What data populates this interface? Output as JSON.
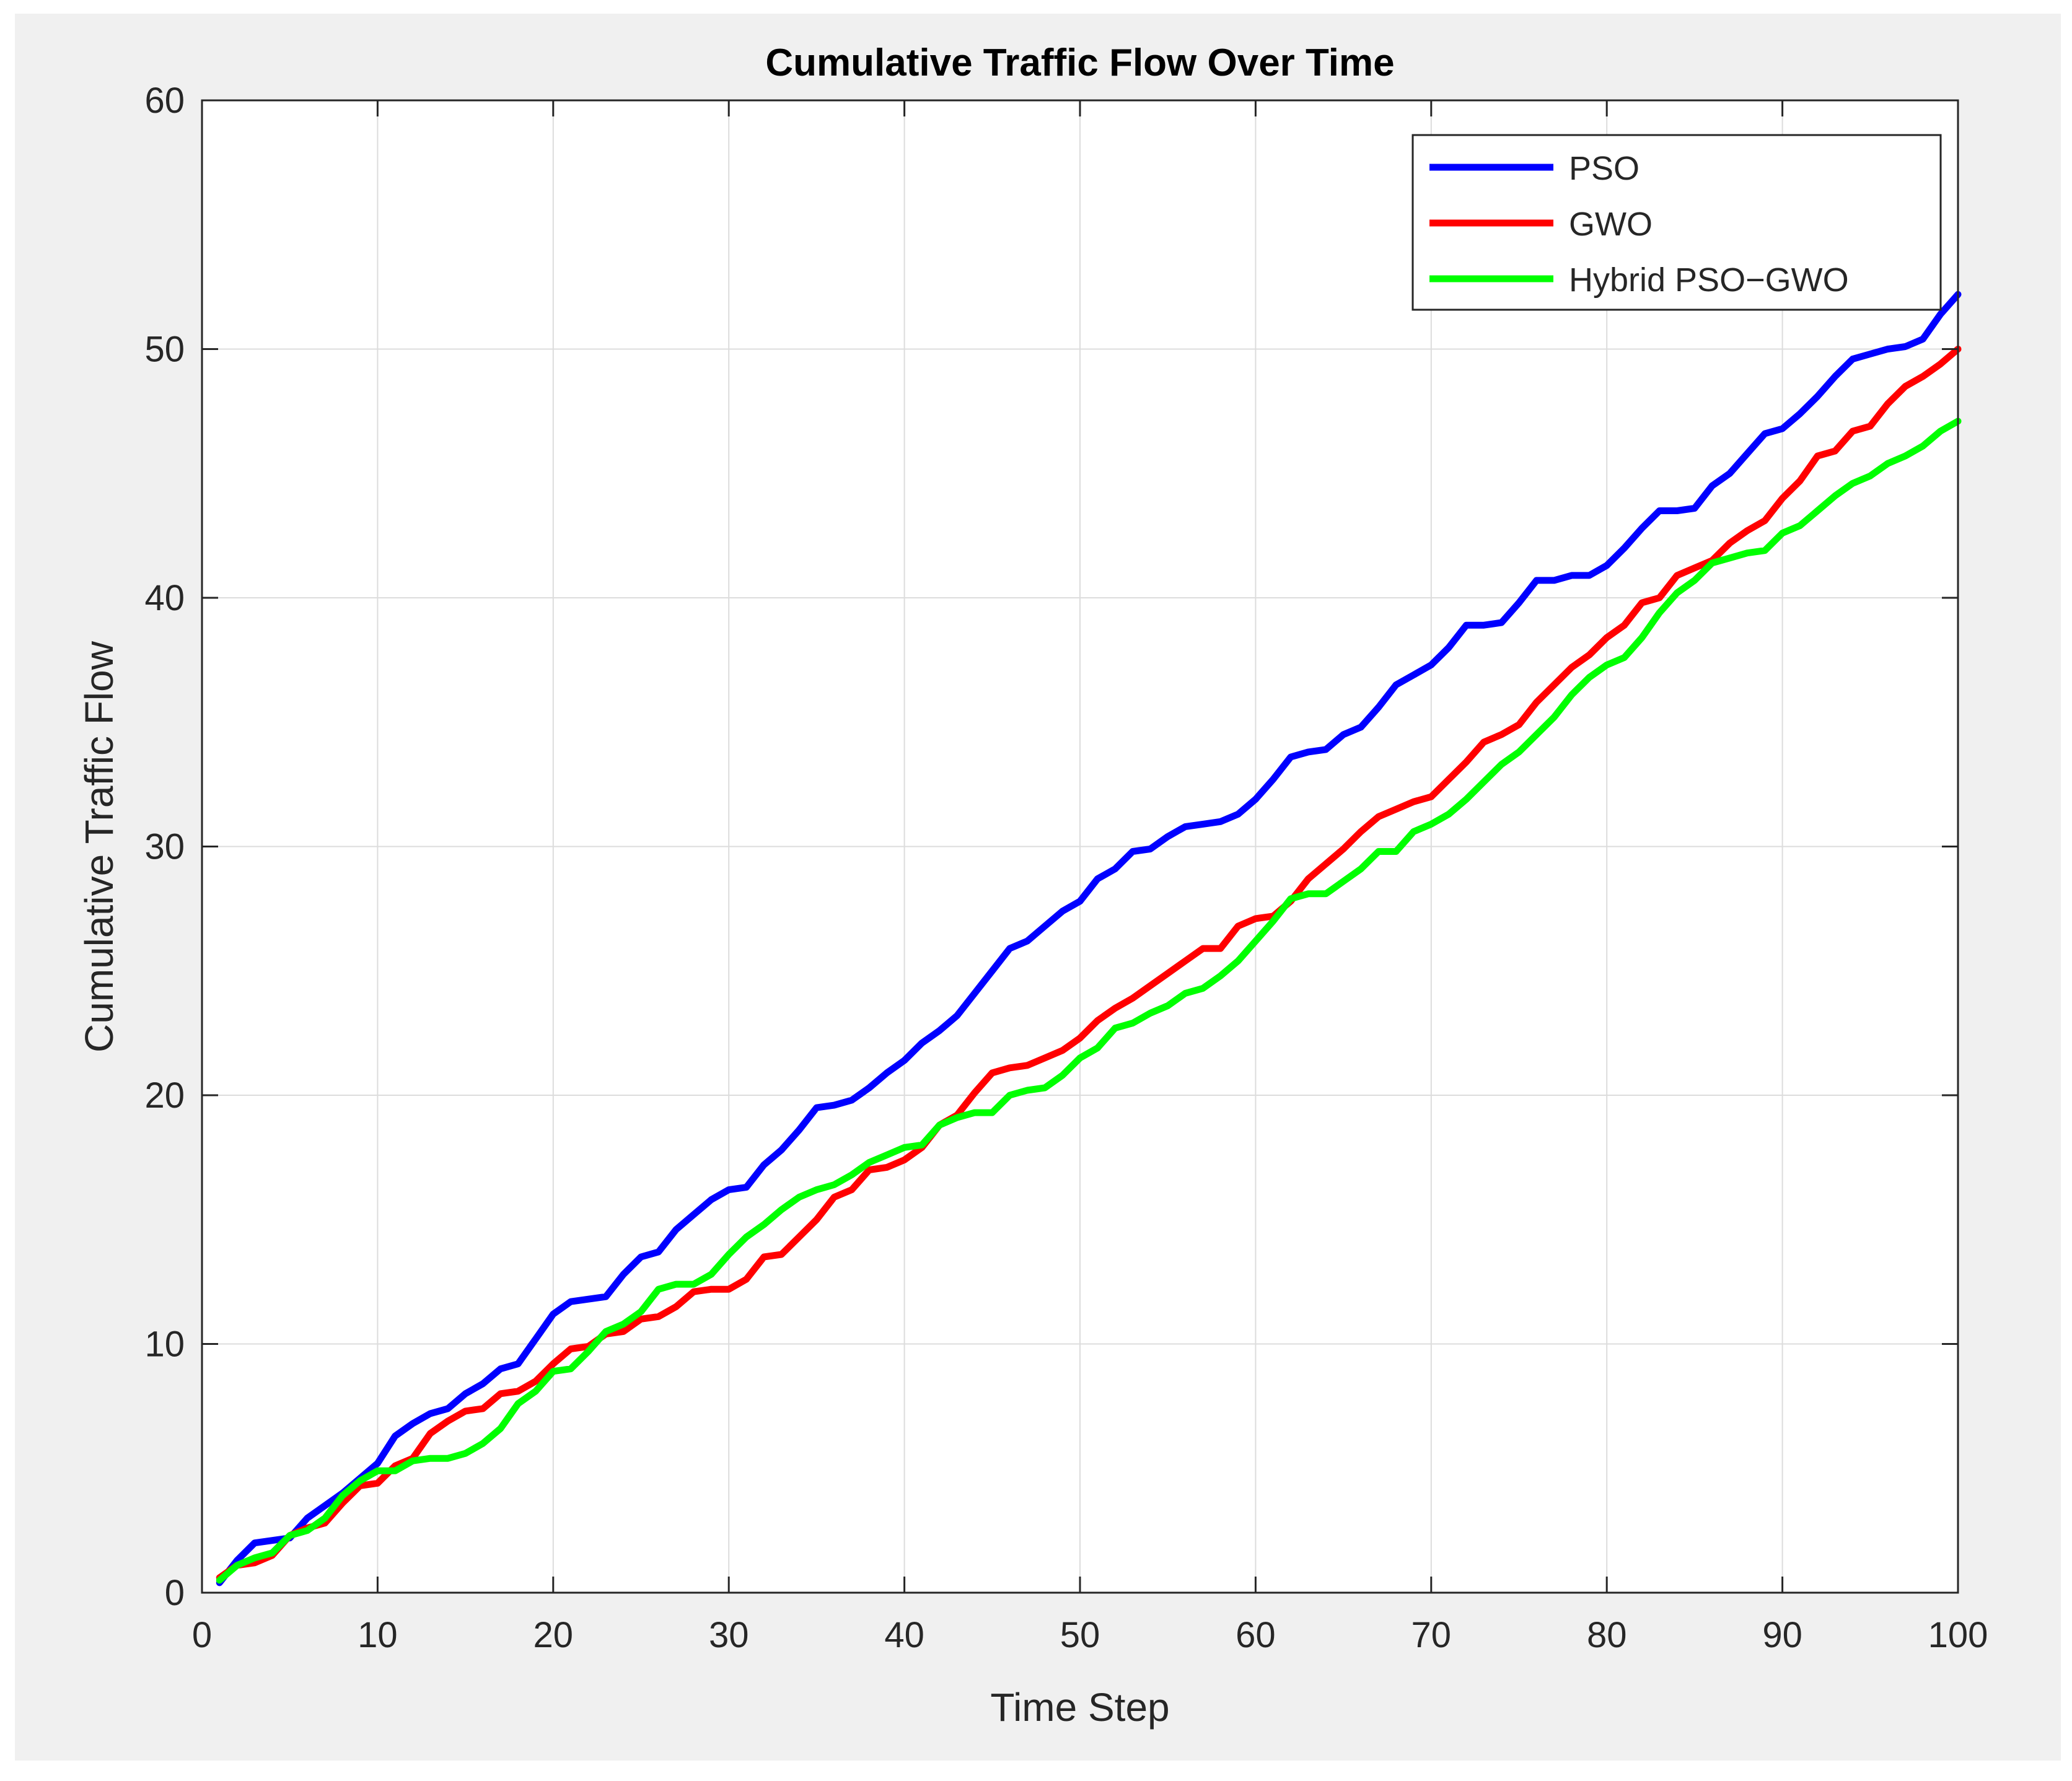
{
  "chart_data": {
    "type": "line",
    "title": "Cumulative Traffic Flow Over Time",
    "xlabel": "Time Step",
    "ylabel": "Cumulative Traffic Flow",
    "xlim": [
      0,
      100
    ],
    "ylim": [
      0,
      60
    ],
    "xticks": [
      0,
      10,
      20,
      30,
      40,
      50,
      60,
      70,
      80,
      90,
      100
    ],
    "yticks": [
      0,
      10,
      20,
      30,
      40,
      50,
      60
    ],
    "grid": true,
    "legend_position": "top-right",
    "series": [
      {
        "name": "PSO",
        "color": "#0000ff",
        "x": [
          1,
          2,
          3,
          5,
          6,
          8,
          9,
          10,
          11,
          12,
          13,
          14,
          15,
          16,
          17,
          18,
          19,
          20,
          21,
          23,
          24,
          25,
          26,
          27,
          28,
          29,
          30,
          31,
          32,
          33,
          34,
          35,
          36,
          37,
          38,
          39,
          40,
          41,
          42,
          43,
          44,
          45,
          46,
          47,
          48,
          49,
          50,
          51,
          52,
          53,
          54,
          55,
          56,
          57,
          58,
          59,
          60,
          61,
          62,
          63,
          64,
          65,
          66,
          67,
          68,
          69,
          70,
          71,
          72,
          73,
          74,
          75,
          76,
          77,
          78,
          79,
          80,
          81,
          82,
          83,
          84,
          85,
          86,
          87,
          88,
          89,
          90,
          91,
          92,
          93,
          94,
          95,
          96,
          97,
          98,
          99,
          100
        ],
        "values": [
          0.4,
          1.3,
          2.0,
          2.2,
          3.0,
          4.0,
          4.6,
          5.2,
          6.3,
          6.8,
          7.2,
          7.4,
          8.0,
          8.4,
          9.0,
          9.2,
          10.2,
          11.2,
          11.7,
          11.9,
          12.8,
          13.5,
          13.7,
          14.6,
          15.2,
          15.8,
          16.2,
          16.3,
          17.2,
          17.8,
          18.6,
          19.5,
          19.6,
          19.8,
          20.3,
          20.9,
          21.4,
          22.1,
          22.6,
          23.2,
          24.1,
          25.0,
          25.9,
          26.2,
          26.8,
          27.4,
          27.8,
          28.7,
          29.1,
          29.8,
          29.9,
          30.4,
          30.8,
          30.9,
          31.0,
          31.3,
          31.9,
          32.7,
          33.6,
          33.8,
          33.9,
          34.5,
          34.8,
          35.6,
          36.5,
          36.9,
          37.3,
          38.0,
          38.9,
          38.9,
          39.0,
          39.8,
          40.7,
          40.7,
          40.9,
          40.9,
          41.3,
          42.0,
          42.8,
          43.5,
          43.5,
          43.6,
          44.5,
          45.0,
          45.8,
          46.6,
          46.8,
          47.4,
          48.1,
          48.9,
          49.6,
          49.8,
          50.0,
          50.1,
          50.4,
          51.4,
          52.2
        ]
      },
      {
        "name": "GWO",
        "color": "#ff0000",
        "x": [
          1,
          2,
          3,
          4,
          5,
          6,
          7,
          8,
          9,
          10,
          11,
          12,
          13,
          14,
          15,
          16,
          17,
          18,
          19,
          20,
          21,
          22,
          23,
          24,
          25,
          26,
          27,
          28,
          29,
          30,
          31,
          32,
          33,
          34,
          35,
          36,
          37,
          38,
          39,
          40,
          41,
          42,
          43,
          44,
          45,
          46,
          47,
          48,
          49,
          50,
          51,
          52,
          53,
          54,
          55,
          56,
          57,
          58,
          59,
          60,
          61,
          62,
          63,
          64,
          65,
          66,
          67,
          68,
          69,
          70,
          71,
          72,
          73,
          74,
          75,
          76,
          77,
          78,
          79,
          80,
          81,
          82,
          83,
          84,
          85,
          86,
          87,
          88,
          89,
          90,
          91,
          92,
          93,
          94,
          95,
          96,
          97,
          98,
          99,
          100
        ],
        "values": [
          0.6,
          1.1,
          1.2,
          1.5,
          2.3,
          2.6,
          2.8,
          3.6,
          4.3,
          4.4,
          5.1,
          5.4,
          6.4,
          6.9,
          7.3,
          7.4,
          8.0,
          8.1,
          8.5,
          9.2,
          9.8,
          9.9,
          10.4,
          10.5,
          11.0,
          11.1,
          11.5,
          12.1,
          12.2,
          12.2,
          12.6,
          13.5,
          13.6,
          14.3,
          15.0,
          15.9,
          16.2,
          17.0,
          17.1,
          17.4,
          17.9,
          18.8,
          19.2,
          20.1,
          20.9,
          21.1,
          21.2,
          21.5,
          21.8,
          22.3,
          23.0,
          23.5,
          23.9,
          24.4,
          24.9,
          25.4,
          25.9,
          25.9,
          26.8,
          27.1,
          27.2,
          27.8,
          28.7,
          29.3,
          29.9,
          30.6,
          31.2,
          31.5,
          31.8,
          32.0,
          32.7,
          33.4,
          34.2,
          34.5,
          34.9,
          35.8,
          36.5,
          37.2,
          37.7,
          38.4,
          38.9,
          39.8,
          40.0,
          40.9,
          41.2,
          41.5,
          42.2,
          42.7,
          43.1,
          44.0,
          44.7,
          45.7,
          45.9,
          46.7,
          46.9,
          47.8,
          48.5,
          48.9,
          49.4,
          50.0
        ]
      },
      {
        "name": "Hybrid PSO−GWO",
        "color": "#00ff00",
        "x": [
          1,
          2,
          3,
          4,
          5,
          6,
          7,
          8,
          9,
          10,
          11,
          12,
          13,
          14,
          15,
          16,
          17,
          18,
          19,
          20,
          21,
          22,
          23,
          24,
          25,
          26,
          27,
          28,
          29,
          30,
          31,
          32,
          33,
          34,
          35,
          36,
          37,
          38,
          39,
          40,
          41,
          42,
          43,
          44,
          45,
          46,
          47,
          48,
          49,
          50,
          51,
          52,
          53,
          54,
          55,
          56,
          57,
          58,
          59,
          60,
          61,
          62,
          63,
          64,
          65,
          66,
          67,
          68,
          69,
          70,
          71,
          72,
          73,
          74,
          75,
          76,
          77,
          78,
          79,
          80,
          81,
          82,
          83,
          84,
          85,
          86,
          87,
          88,
          89,
          90,
          91,
          92,
          93,
          94,
          95,
          96,
          97,
          98,
          99,
          100
        ],
        "values": [
          0.5,
          1.1,
          1.4,
          1.6,
          2.3,
          2.5,
          3.0,
          3.9,
          4.5,
          4.9,
          4.9,
          5.3,
          5.4,
          5.4,
          5.6,
          6.0,
          6.6,
          7.6,
          8.1,
          8.9,
          9.0,
          9.7,
          10.5,
          10.8,
          11.3,
          12.2,
          12.4,
          12.4,
          12.8,
          13.6,
          14.3,
          14.8,
          15.4,
          15.9,
          16.2,
          16.4,
          16.8,
          17.3,
          17.6,
          17.9,
          18.0,
          18.8,
          19.1,
          19.3,
          19.3,
          20.0,
          20.2,
          20.3,
          20.8,
          21.5,
          21.9,
          22.7,
          22.9,
          23.3,
          23.6,
          24.1,
          24.3,
          24.8,
          25.4,
          26.2,
          27.0,
          27.9,
          28.1,
          28.1,
          28.6,
          29.1,
          29.8,
          29.8,
          30.6,
          30.9,
          31.3,
          31.9,
          32.6,
          33.3,
          33.8,
          34.5,
          35.2,
          36.1,
          36.8,
          37.3,
          37.6,
          38.4,
          39.4,
          40.2,
          40.7,
          41.4,
          41.6,
          41.8,
          41.9,
          42.6,
          42.9,
          43.5,
          44.1,
          44.6,
          44.9,
          45.4,
          45.7,
          46.1,
          46.7,
          47.1
        ]
      }
    ]
  }
}
